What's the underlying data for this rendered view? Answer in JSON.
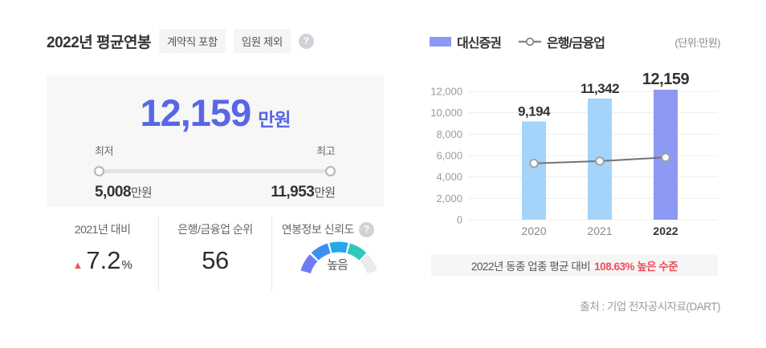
{
  "header": {
    "title": "2022년 평균연봉",
    "badges": [
      "계약직 포함",
      "임원 제외"
    ],
    "help_icon": "?"
  },
  "summary": {
    "value": "12,159",
    "unit": "만원",
    "min_label": "최저",
    "max_label": "최고",
    "min_value": "5,008",
    "min_unit": "만원",
    "max_value": "11,953",
    "max_unit": "만원"
  },
  "stats": {
    "yoy": {
      "label": "2021년 대비",
      "arrow": "▲",
      "value": "7.2",
      "unit": "%"
    },
    "rank": {
      "label": "은행/금융업 순위",
      "value": "56"
    },
    "reliability": {
      "label": "연봉정보 신뢰도",
      "help_icon": "?",
      "gauge_label": "높음"
    }
  },
  "chart": {
    "legend": [
      {
        "label": "대신증권",
        "type": "bar"
      },
      {
        "label": "은행/금융업",
        "type": "line"
      }
    ],
    "unit_note": "(단위:만원)",
    "footnote_prefix": "2022년 동종 업종 평균 대비",
    "footnote_highlight": "108.63% 높은 수준",
    "source": "출처 : 기업 전자공시자료(DART)"
  },
  "chart_data": {
    "type": "bar",
    "categories": [
      "2020",
      "2021",
      "2022"
    ],
    "series": [
      {
        "name": "대신증권",
        "type": "bar",
        "values": [
          9194,
          11342,
          12159
        ]
      },
      {
        "name": "은행/금융업",
        "type": "line",
        "values": [
          5270,
          5480,
          5830
        ]
      }
    ],
    "title": "",
    "xlabel": "",
    "ylabel": "만원",
    "ylim": [
      0,
      12000
    ],
    "yticks": [
      0,
      2000,
      4000,
      6000,
      8000,
      10000,
      12000
    ],
    "grid": "horizontal",
    "legend_position": "top-left",
    "highlight_category": "2022"
  },
  "colors": {
    "accent_blue": "#5867e6",
    "bar": "#a4d4f9",
    "bar_highlight": "#8d99f2",
    "line": "#737373",
    "marker_ring": "#a2a2a6",
    "grid": "#ededee",
    "tick_label": "#9b9ba0",
    "red": "#f04c5a",
    "gauge_segments": [
      "#6e7ef2",
      "#3d90f2",
      "#29a7ec",
      "#2fc9b8",
      "#e9ebee"
    ]
  }
}
